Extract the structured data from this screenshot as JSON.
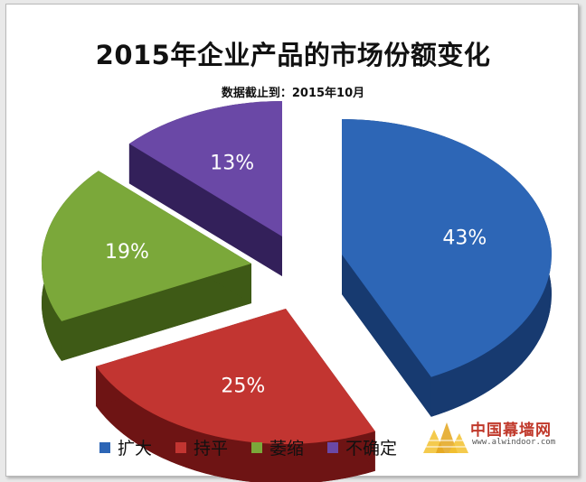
{
  "title": "2015年企业产品的市场份额变化",
  "subtitle": "数据截止到：2015年10月",
  "chart_data": {
    "type": "pie",
    "title": "2015年企业产品的市场份额变化",
    "subtitle": "数据截止到：2015年10月",
    "legend_position": "bottom",
    "slices": [
      {
        "label": "扩大",
        "value": 43,
        "display": "43%",
        "color": "#2d66b6",
        "dark": "#173a70"
      },
      {
        "label": "持平",
        "value": 25,
        "display": "25%",
        "color": "#c23531",
        "dark": "#6e1414"
      },
      {
        "label": "萎缩",
        "value": 19,
        "display": "19%",
        "color": "#7ba83a",
        "dark": "#3e5a16"
      },
      {
        "label": "不确定",
        "value": 13,
        "display": "13%",
        "color": "#6a48a6",
        "dark": "#33205a"
      }
    ]
  },
  "legend": [
    "扩大",
    "持平",
    "萎缩",
    "不确定"
  ],
  "watermark": {
    "name": "中国幕墙网",
    "url": "www.alwindoor.com"
  }
}
